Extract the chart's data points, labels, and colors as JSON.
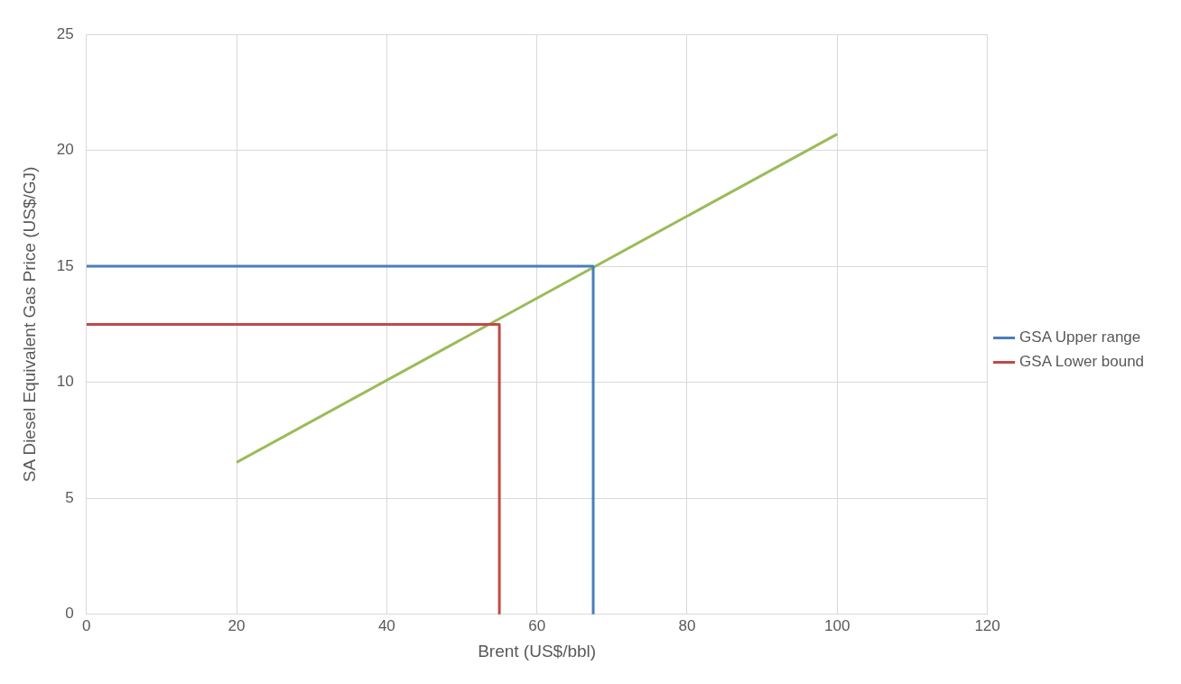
{
  "chart_data": {
    "type": "line",
    "xlabel": "Brent (US$/bbl)",
    "ylabel": "SA Diesel Equivalent Gas Price (US$/GJ)",
    "series": [
      {
        "name": "GSA Upper range",
        "color": "#4a7ebb",
        "x": [
          0,
          67.5,
          67.5
        ],
        "values": [
          15,
          15,
          0
        ]
      },
      {
        "name": "GSA Lower bound",
        "color": "#be4b48",
        "x": [
          0,
          55,
          55
        ],
        "values": [
          12.5,
          12.5,
          0
        ]
      },
      {
        "color": "#9bbb59",
        "x": [
          20,
          100
        ],
        "values": [
          6.55,
          20.7
        ]
      }
    ],
    "xlim": [
      0,
      120
    ],
    "xticks": [
      0,
      20,
      40,
      60,
      80,
      100,
      120
    ],
    "ylim": [
      0,
      25
    ],
    "yticks": [
      0,
      5,
      10,
      15,
      20,
      25
    ],
    "grid": true,
    "legend": "right",
    "marker": "none",
    "line_style": "solid"
  }
}
